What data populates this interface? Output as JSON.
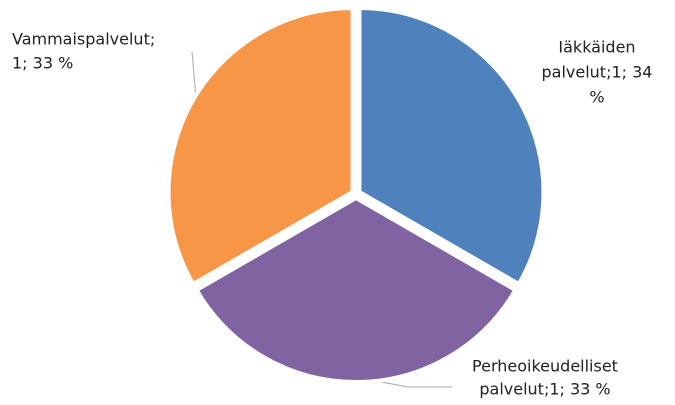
{
  "chart_data": {
    "type": "pie",
    "categories": [
      "Iäkkäiden palvelut",
      "Perheoikeudelliset palvelut",
      "Vammaispalvelut"
    ],
    "values": [
      1,
      1,
      1
    ],
    "colors": [
      "#4f81bd",
      "#8064a2",
      "#f79646"
    ],
    "value_labels": [
      [
        "Iäkkäiden",
        "palvelut;1; 34",
        "%"
      ],
      [
        "Perheoikeudelliset",
        "palvelut;1; 33 %"
      ],
      [
        "Vammaispalvelut;",
        "1; 33 %"
      ]
    ]
  }
}
